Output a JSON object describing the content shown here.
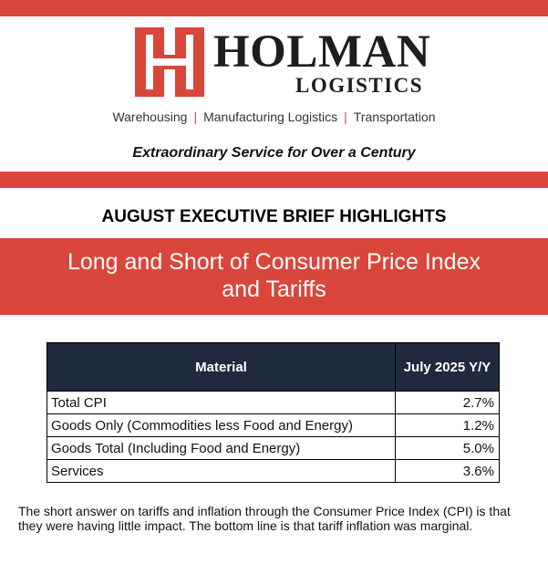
{
  "colors": {
    "brand_red": "#d9463b",
    "table_header": "#1f2a3c"
  },
  "logo": {
    "icon": "holman-h-logo-icon",
    "name": "HOLMAN",
    "sub": "LOGISTICS"
  },
  "services": [
    "Warehousing",
    "Manufacturing Logistics",
    "Transportation"
  ],
  "tagline": "Extraordinary Service for Over a Century",
  "brief_title": "AUGUST EXECUTIVE BRIEF HIGHLIGHTS",
  "banner": {
    "line1": "Long and Short of Consumer Price Index",
    "line2": "and Tariffs"
  },
  "table": {
    "headers": [
      "Material",
      "July 2025 Y/Y"
    ],
    "rows": [
      [
        "Total CPI",
        "2.7%"
      ],
      [
        "Goods Only (Commodities less Food and Energy)",
        "1.2%"
      ],
      [
        "Goods Total (Including Food and Energy)",
        "5.0%"
      ],
      [
        "Services",
        "3.6%"
      ]
    ]
  },
  "summary": "The short answer on tariffs and inflation through the Consumer Price Index (CPI) is that they were having little impact. The bottom line is that tariff inflation was marginal."
}
